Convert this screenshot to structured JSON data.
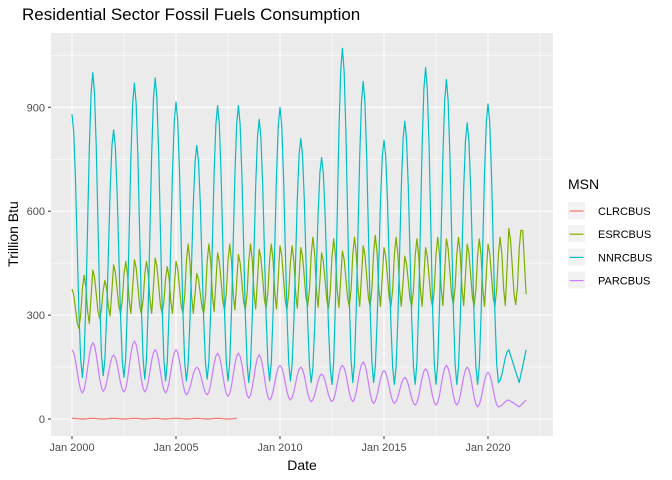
{
  "chart_data": {
    "type": "line",
    "title": "Residential Sector Fossil Fuels Consumption",
    "xlabel": "Date",
    "ylabel": "Trillion Btu",
    "x_range": [
      2000,
      2021.75
    ],
    "ylim": [
      0,
      1100
    ],
    "x_ticks": [
      {
        "value": 2000,
        "label": "Jan 2000"
      },
      {
        "value": 2005,
        "label": "Jan 2005"
      },
      {
        "value": 2010,
        "label": "Jan 2010"
      },
      {
        "value": 2015,
        "label": "Jan 2015"
      },
      {
        "value": 2020,
        "label": "Jan 2020"
      }
    ],
    "y_ticks": [
      {
        "value": 0,
        "label": "0"
      },
      {
        "value": 300,
        "label": "300"
      },
      {
        "value": 600,
        "label": "600"
      },
      {
        "value": 900,
        "label": "900"
      }
    ],
    "grid": true,
    "legend": {
      "title": "MSN",
      "position": "right"
    },
    "series": [
      {
        "name": "CLRCBUS",
        "color": "#F8766D",
        "start_year": 2000,
        "end_year": 2007,
        "winter_peak": 2,
        "summer_low": 0
      },
      {
        "name": "ESRCBUS",
        "color": "#7CAE00",
        "start_year": 2000,
        "end_year": 2021,
        "winter_peaks": [
          375,
          430,
          445,
          460,
          465,
          455,
          420,
          480,
          475,
          490,
          500,
          495,
          480,
          485,
          500,
          495,
          470,
          495,
          520,
          505,
          505,
          550
        ],
        "summer_peaks": [
          415,
          400,
          455,
          455,
          440,
          505,
          505,
          505,
          505,
          505,
          500,
          525,
          520,
          525,
          530,
          525,
          520,
          525,
          525,
          520,
          525,
          545
        ],
        "troughs": [
          262,
          290,
          305,
          305,
          305,
          305,
          305,
          315,
          315,
          320,
          315,
          325,
          320,
          325,
          325,
          325,
          325,
          325,
          330,
          325,
          325,
          330
        ]
      },
      {
        "name": "NNRCBUS",
        "color": "#00BFC4",
        "start_year": 2000,
        "end_year": 2021,
        "winter_peaks": [
          880,
          1000,
          835,
          970,
          985,
          915,
          790,
          905,
          905,
          865,
          900,
          810,
          755,
          1070,
          975,
          805,
          860,
          1015,
          980,
          855,
          910,
          200
        ],
        "summer_lows": [
          120,
          125,
          120,
          115,
          110,
          110,
          115,
          110,
          105,
          110,
          110,
          105,
          100,
          105,
          105,
          100,
          100,
          100,
          100,
          100,
          105,
          105
        ]
      },
      {
        "name": "PARCBUS",
        "color": "#C77CFF",
        "start_year": 2000,
        "end_year": 2021,
        "winter_peaks": [
          200,
          220,
          185,
          225,
          200,
          200,
          150,
          190,
          190,
          185,
          155,
          150,
          130,
          155,
          165,
          140,
          120,
          145,
          155,
          150,
          135,
          55
        ],
        "summer_lows": [
          75,
          80,
          78,
          78,
          75,
          70,
          70,
          65,
          60,
          55,
          55,
          50,
          50,
          50,
          45,
          45,
          40,
          40,
          40,
          35,
          35,
          35
        ]
      }
    ]
  }
}
